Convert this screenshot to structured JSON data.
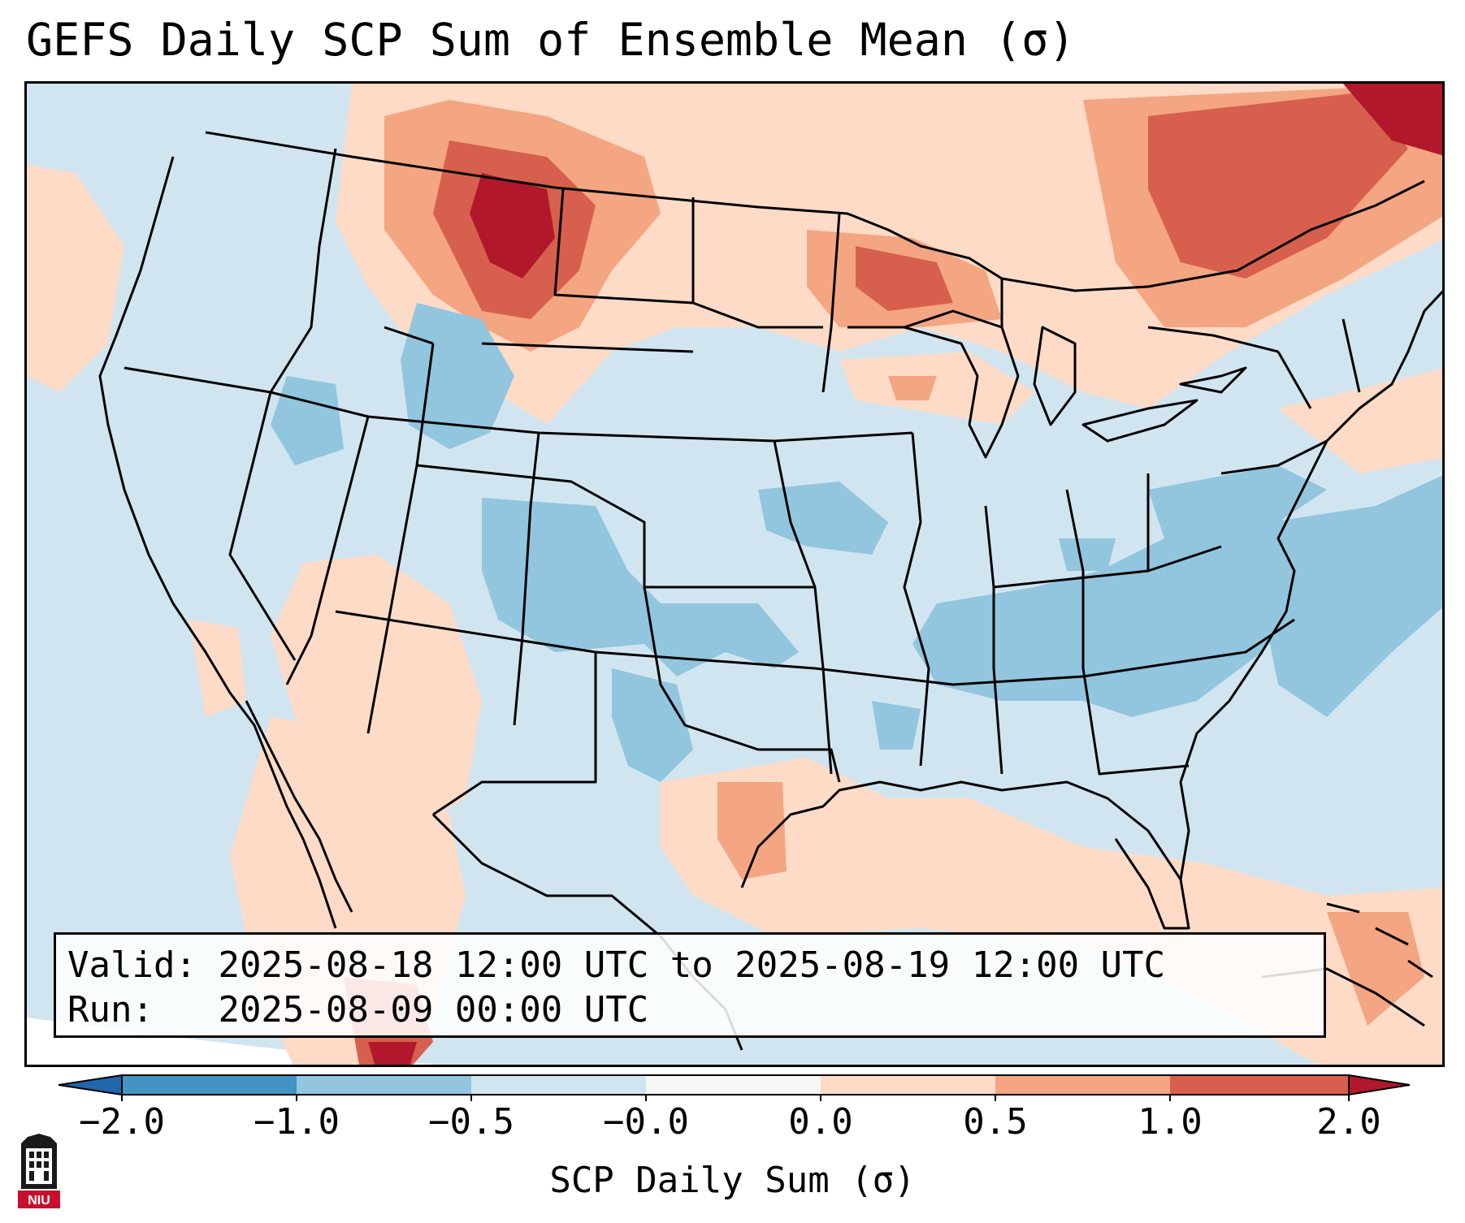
{
  "title": "GEFS Daily SCP Sum of Ensemble Mean (σ)",
  "info": {
    "valid_label": "Valid:",
    "valid_value": "2025-08-18 12:00 UTC to 2025-08-19 12:00 UTC",
    "run_label": "Run:",
    "run_value": "2025-08-09 00:00 UTC"
  },
  "colorbar": {
    "label": "SCP Daily Sum (σ)",
    "ticks": [
      "−2.0",
      "−1.0",
      "−0.5",
      "−0.0",
      "0.0",
      "0.5",
      "1.0",
      "2.0"
    ],
    "colors": [
      "#3f8fc5",
      "#92c5de",
      "#d1e5f0",
      "#f7f7f7",
      "#fddbc7",
      "#f4a582",
      "#d6604d",
      "#b2182b"
    ]
  },
  "map": {
    "base_color": "#d1e5f0",
    "coast_color": "#000000"
  },
  "logo": {
    "text": "NIU",
    "color": "#c8102e"
  }
}
